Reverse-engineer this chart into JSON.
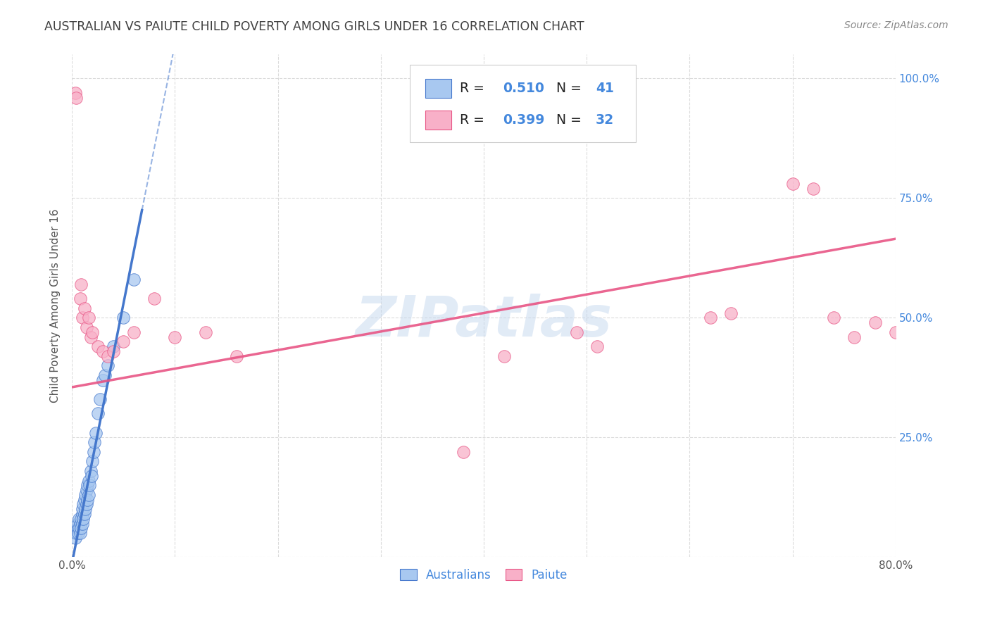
{
  "title": "AUSTRALIAN VS PAIUTE CHILD POVERTY AMONG GIRLS UNDER 16 CORRELATION CHART",
  "source": "Source: ZipAtlas.com",
  "ylabel": "Child Poverty Among Girls Under 16",
  "background_color": "#ffffff",
  "watermark": "ZIPatlas",
  "xlim": [
    0.0,
    0.8
  ],
  "ylim": [
    0.0,
    1.05
  ],
  "xticks": [
    0.0,
    0.1,
    0.2,
    0.3,
    0.4,
    0.5,
    0.6,
    0.7,
    0.8
  ],
  "xticklabels": [
    "0.0%",
    "",
    "",
    "",
    "",
    "",
    "",
    "",
    "80.0%"
  ],
  "yticks": [
    0.0,
    0.25,
    0.5,
    0.75,
    1.0
  ],
  "yticklabels": [
    "",
    "25.0%",
    "50.0%",
    "75.0%",
    "100.0%"
  ],
  "color_blue": "#a8c8f0",
  "color_pink": "#f8b0c8",
  "line_blue": "#4477cc",
  "line_pink": "#e85585",
  "title_color": "#404040",
  "axis_label_color": "#555555",
  "tick_color_right": "#4488dd",
  "grid_color": "#d8d8d8",
  "aus_x": [
    0.003,
    0.004,
    0.005,
    0.005,
    0.006,
    0.007,
    0.007,
    0.008,
    0.008,
    0.009,
    0.009,
    0.01,
    0.01,
    0.01,
    0.011,
    0.011,
    0.012,
    0.012,
    0.013,
    0.013,
    0.014,
    0.014,
    0.015,
    0.015,
    0.016,
    0.016,
    0.017,
    0.018,
    0.019,
    0.02,
    0.021,
    0.022,
    0.023,
    0.025,
    0.027,
    0.03,
    0.032,
    0.035,
    0.04,
    0.05,
    0.06
  ],
  "aus_y": [
    0.04,
    0.05,
    0.06,
    0.07,
    0.05,
    0.06,
    0.08,
    0.05,
    0.07,
    0.06,
    0.08,
    0.07,
    0.09,
    0.1,
    0.08,
    0.11,
    0.09,
    0.12,
    0.1,
    0.13,
    0.11,
    0.14,
    0.12,
    0.15,
    0.13,
    0.16,
    0.15,
    0.18,
    0.17,
    0.2,
    0.22,
    0.24,
    0.26,
    0.3,
    0.33,
    0.37,
    0.38,
    0.4,
    0.44,
    0.5,
    0.58
  ],
  "paiute_x": [
    0.003,
    0.004,
    0.008,
    0.009,
    0.01,
    0.012,
    0.014,
    0.016,
    0.018,
    0.02,
    0.025,
    0.03,
    0.035,
    0.04,
    0.05,
    0.06,
    0.08,
    0.1,
    0.13,
    0.16,
    0.38,
    0.42,
    0.49,
    0.51,
    0.62,
    0.64,
    0.7,
    0.72,
    0.74,
    0.76,
    0.78,
    0.8
  ],
  "paiute_y": [
    0.97,
    0.96,
    0.54,
    0.57,
    0.5,
    0.52,
    0.48,
    0.5,
    0.46,
    0.47,
    0.44,
    0.43,
    0.42,
    0.43,
    0.45,
    0.47,
    0.54,
    0.46,
    0.47,
    0.42,
    0.22,
    0.42,
    0.47,
    0.44,
    0.5,
    0.51,
    0.78,
    0.77,
    0.5,
    0.46,
    0.49,
    0.47
  ],
  "aus_R": 0.51,
  "paiute_R": 0.399,
  "aus_line_x0": 0.0,
  "aus_line_x1": 0.068,
  "paiute_line_x0": 0.0,
  "paiute_line_x1": 0.8,
  "paiute_line_y0": 0.355,
  "paiute_line_y1": 0.665
}
